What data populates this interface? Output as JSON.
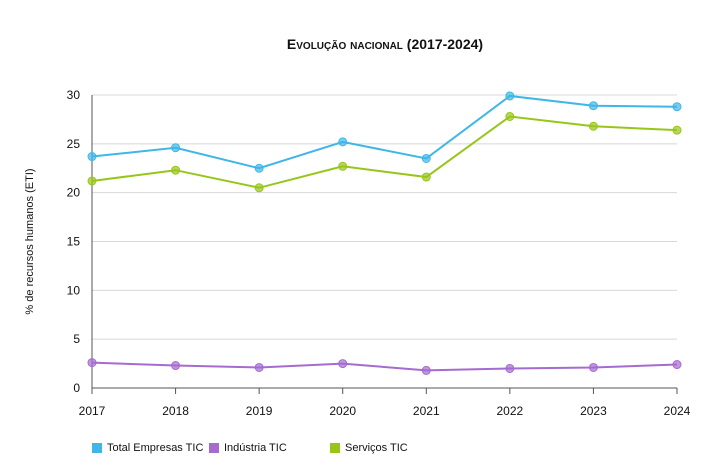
{
  "chart_data": {
    "type": "line",
    "title": "Evolução nacional (2017-2024)",
    "xlabel": "",
    "ylabel": "% de recursos humanos (ETI)",
    "x": [
      "2017",
      "2018",
      "2019",
      "2020",
      "2021",
      "2022",
      "2023",
      "2024"
    ],
    "ylim": [
      0,
      30
    ],
    "yticks": [
      0,
      5,
      10,
      15,
      20,
      25,
      30
    ],
    "grid": true,
    "legend_position": "bottom",
    "series": [
      {
        "name": "Total Empresas TIC",
        "color": "#3fb6e8",
        "values": [
          23.7,
          24.6,
          22.5,
          25.2,
          23.5,
          29.9,
          28.9,
          28.8
        ]
      },
      {
        "name": "Indústria TIC",
        "color": "#a56bd0",
        "values": [
          2.6,
          2.3,
          2.1,
          2.5,
          1.8,
          2.0,
          2.1,
          2.4
        ]
      },
      {
        "name": "Serviços TIC",
        "color": "#97c619",
        "values": [
          21.2,
          22.3,
          20.5,
          22.7,
          21.6,
          27.8,
          26.8,
          26.4
        ]
      }
    ]
  }
}
